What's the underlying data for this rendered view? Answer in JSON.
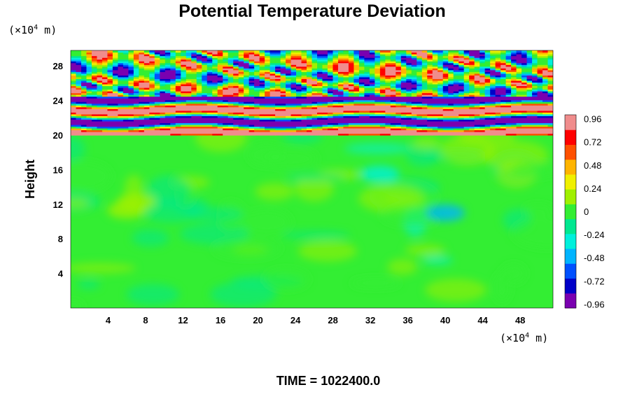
{
  "chart_data": {
    "type": "heatmap",
    "title": "Potential Temperature Deviation",
    "ylabel": "Height",
    "x_unit": {
      "prefix": "(×10",
      "exp": "4",
      "suffix": " m)"
    },
    "y_unit": {
      "prefix": "(×10",
      "exp": "4",
      "suffix": " m)"
    },
    "xlim": [
      0,
      51.5
    ],
    "ylim": [
      0,
      29.8
    ],
    "x_ticks": [
      4,
      8,
      12,
      16,
      20,
      24,
      28,
      32,
      36,
      40,
      44,
      48
    ],
    "y_ticks": [
      4,
      8,
      12,
      16,
      20,
      24,
      28
    ],
    "colorbar": {
      "range": [
        -1.0,
        1.0
      ],
      "tick_values": [
        0.96,
        0.72,
        0.48,
        0.24,
        0,
        -0.24,
        -0.48,
        -0.72,
        -0.96
      ],
      "tick_labels": [
        "0.96",
        "0.72",
        "0.48",
        "0.24",
        "0",
        "-0.24",
        "-0.48",
        "-0.72",
        "-0.96"
      ],
      "colors_low_to_high": [
        "#7a00b0",
        "#0000c8",
        "#0050ff",
        "#00b4ff",
        "#00f0dc",
        "#00e890",
        "#33ee33",
        "#a0f000",
        "#f0f000",
        "#ffb400",
        "#ff5000",
        "#ff0000",
        "#f08c8c"
      ]
    },
    "field_description": {
      "lower_region_height_range": [
        0,
        20
      ],
      "lower_region_typical_value": -0.05,
      "upper_region_height_range": [
        20,
        29.8
      ],
      "upper_region_amplitude": 1.0
    },
    "annotation": "TIME = 1022400.0"
  }
}
